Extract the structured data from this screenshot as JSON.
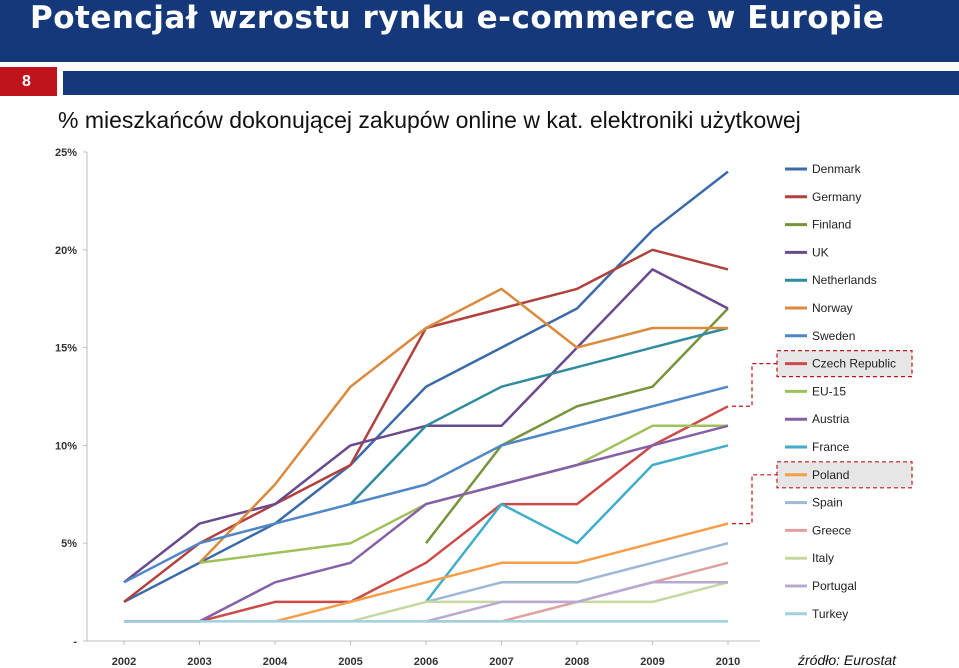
{
  "header": {
    "title": "Potencjał wzrostu rynku e-commerce w Europie",
    "slide_number": "8"
  },
  "subtitle": "% mieszkańców dokonującej zakupów online w kat. elektroniki użytkowej",
  "source": "źródło: Eurostat",
  "colors": {
    "title_bar": "#14387a",
    "number_box": "#c0141c",
    "highlight_box": "#c0141c"
  },
  "chart_data": {
    "type": "line",
    "x": [
      "2002",
      "2003",
      "2004",
      "2005",
      "2006",
      "2007",
      "2008",
      "2009",
      "2010"
    ],
    "y_tick_labels": [
      "-",
      "5%",
      "10%",
      "15%",
      "20%",
      "25%"
    ],
    "ylim": [
      0,
      25
    ],
    "legend_position": "right",
    "grid": false,
    "highlighted_series": [
      "Czech Republic",
      "Poland"
    ],
    "series": [
      {
        "name": "Denmark",
        "color": "#3b6aa8",
        "values": [
          2,
          4,
          6,
          9,
          13,
          15,
          17,
          21,
          24
        ]
      },
      {
        "name": "Germany",
        "color": "#b0413e",
        "values": [
          2,
          5,
          7,
          9,
          16,
          17,
          18,
          20,
          19
        ]
      },
      {
        "name": "Finland",
        "color": "#77943c",
        "values": [
          null,
          null,
          null,
          null,
          5,
          10,
          12,
          13,
          17
        ]
      },
      {
        "name": "UK",
        "color": "#6a4a8c",
        "values": [
          3,
          6,
          7,
          10,
          11,
          11,
          15,
          19,
          17
        ]
      },
      {
        "name": "Netherlands",
        "color": "#2f8c9c",
        "values": [
          null,
          null,
          null,
          7,
          11,
          13,
          14,
          15,
          16
        ]
      },
      {
        "name": "Norway",
        "color": "#d98a3d",
        "values": [
          null,
          4,
          8,
          13,
          16,
          18,
          15,
          16,
          16
        ]
      },
      {
        "name": "Sweden",
        "color": "#4e86c6",
        "values": [
          3,
          5,
          6,
          7,
          8,
          10,
          11,
          12,
          13
        ]
      },
      {
        "name": "Czech Republic",
        "color": "#cc4a48",
        "values": [
          1,
          1,
          2,
          2,
          4,
          7,
          7,
          10,
          12
        ]
      },
      {
        "name": "EU-15",
        "color": "#a0c05a",
        "values": [
          null,
          4,
          4.5,
          5,
          7,
          8,
          9,
          11,
          11
        ]
      },
      {
        "name": "Austria",
        "color": "#8560a8",
        "values": [
          1,
          1,
          3,
          4,
          7,
          8,
          9,
          10,
          11
        ]
      },
      {
        "name": "France",
        "color": "#40aec8",
        "values": [
          null,
          null,
          null,
          null,
          2,
          7,
          5,
          9,
          10
        ]
      },
      {
        "name": "Poland",
        "color": "#f59d48",
        "values": [
          null,
          null,
          1,
          2,
          3,
          4,
          4,
          5,
          6
        ]
      },
      {
        "name": "Spain",
        "color": "#9db8d6",
        "values": [
          null,
          null,
          null,
          null,
          2,
          3,
          3,
          4,
          5
        ]
      },
      {
        "name": "Greece",
        "color": "#e0a0a0",
        "values": [
          null,
          null,
          null,
          null,
          1,
          1,
          2,
          3,
          4
        ]
      },
      {
        "name": "Italy",
        "color": "#c4d8a0",
        "values": [
          null,
          null,
          null,
          1,
          2,
          2,
          2,
          2,
          3
        ]
      },
      {
        "name": "Portugal",
        "color": "#b8a8d2",
        "values": [
          null,
          null,
          null,
          null,
          1,
          2,
          2,
          3,
          3
        ]
      },
      {
        "name": "Turkey",
        "color": "#9fd0e0",
        "values": [
          1,
          1,
          1,
          1,
          1,
          1,
          1,
          1,
          1
        ]
      }
    ]
  }
}
